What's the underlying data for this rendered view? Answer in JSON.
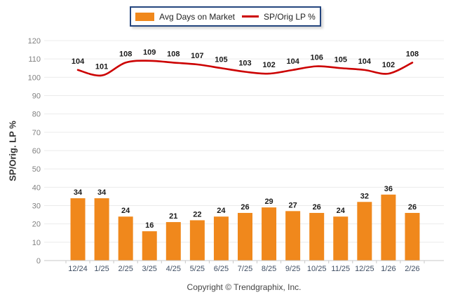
{
  "legend": {
    "bar_label": "Avg Days on Market",
    "line_label": "SP/Orig LP %"
  },
  "y_axis_title": "SP/Orig. LP %",
  "footer": {
    "copyright": "Copyright © Trendgraphix, Inc."
  },
  "colors": {
    "bar": "#F0881C",
    "line": "#CC0000",
    "grid": "#EBEBEB",
    "axis": "#C8C8C8",
    "y_tick_label": "#808080",
    "x_tick_label": "#3F4E63",
    "data_label": "#1A1A1A"
  },
  "chart_data": {
    "type": "combo",
    "categories": [
      "12/24",
      "1/25",
      "2/25",
      "3/25",
      "4/25",
      "5/25",
      "6/25",
      "7/25",
      "8/25",
      "9/25",
      "10/25",
      "11/25",
      "12/25",
      "1/26",
      "2/26"
    ],
    "series": [
      {
        "name": "Avg Days on Market",
        "type": "bar",
        "color": "#F0881C",
        "values": [
          34,
          34,
          24,
          16,
          21,
          22,
          24,
          26,
          29,
          27,
          26,
          24,
          32,
          36,
          26
        ]
      },
      {
        "name": "SP/Orig LP %",
        "type": "line",
        "color": "#CC0000",
        "values": [
          104,
          101,
          108,
          109,
          108,
          107,
          105,
          103,
          102,
          104,
          106,
          105,
          104,
          102,
          108
        ]
      }
    ],
    "title": "",
    "xlabel": "",
    "ylabel": "SP/Orig. LP %",
    "ylim": [
      0,
      120
    ],
    "ytick_step": 10,
    "grid": true,
    "legend_position": "top-center",
    "data_labels": true
  }
}
